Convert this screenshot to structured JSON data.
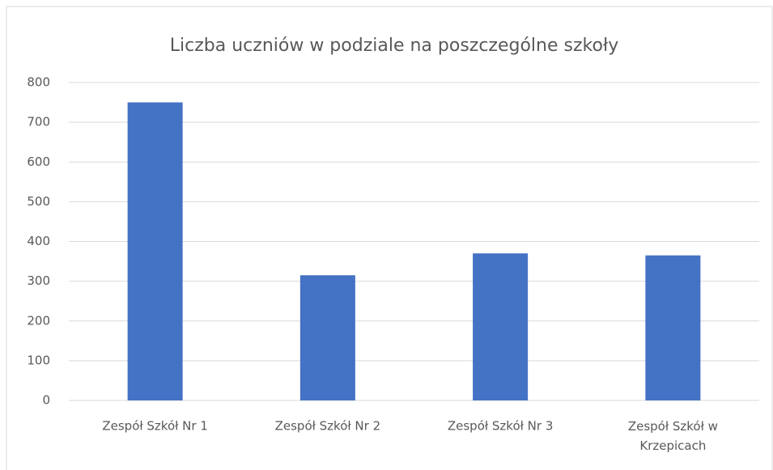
{
  "chart_data": {
    "type": "bar",
    "title": "Liczba uczniów w podziale na poszczególne szkoły",
    "categories": [
      "Zespół Szkół Nr 1",
      "Zespół Szkół Nr 2",
      "Zespół Szkół Nr 3",
      "Zespół Szkół w Krzepicach"
    ],
    "values": [
      750,
      315,
      370,
      365
    ],
    "color": "#4472c4",
    "ylim": [
      0,
      800
    ],
    "yticks": [
      0,
      100,
      200,
      300,
      400,
      500,
      600,
      700,
      800
    ],
    "grid": true
  }
}
